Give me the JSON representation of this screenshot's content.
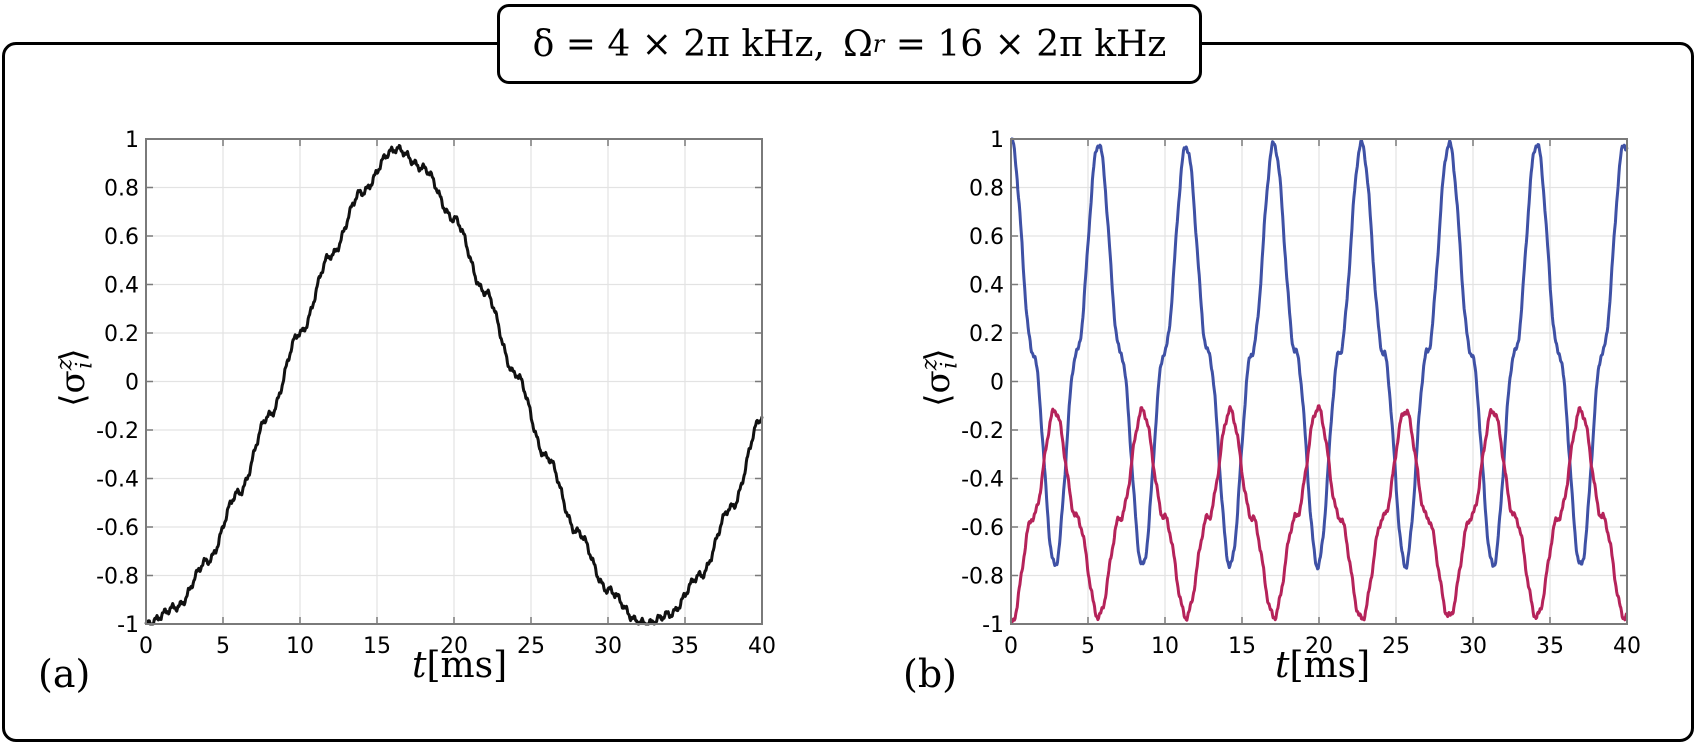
{
  "header": {
    "title": "δ = 4 × 2π kHz,  Ω_r = 16 × 2π kHz",
    "title_parts": {
      "delta_label": "δ = 4 × 2π kHz,",
      "omega_symbol": "Ω",
      "omega_sub": "r",
      "omega_rest": " = 16 × 2π kHz"
    }
  },
  "panels": [
    {
      "label": "(a)",
      "xlabel_var": "t",
      "xlabel_unit": "[ms]",
      "ylabel": "⟨σ",
      "ylabel_sup": "z",
      "ylabel_sub": "i",
      "ylabel_close": "⟩"
    },
    {
      "label": "(b)",
      "xlabel_var": "t",
      "xlabel_unit": "[ms]",
      "ylabel": "⟨σ",
      "ylabel_sup": "z",
      "ylabel_sub": "i",
      "ylabel_close": "⟩"
    }
  ],
  "colors": {
    "black": "#111111",
    "blue": "#3F51A5",
    "red": "#B5235A",
    "grid": "#e3e3e3",
    "axis": "#7a7a7a"
  },
  "chart_data": [
    {
      "type": "line",
      "title": "(a)",
      "xlabel": "t[ms]",
      "ylabel": "⟨σ_i^z⟩",
      "xlim": [
        0,
        40
      ],
      "ylim": [
        -1,
        1
      ],
      "xticks": [
        0,
        5,
        10,
        15,
        20,
        25,
        30,
        35,
        40
      ],
      "yticks": [
        1,
        0.8,
        0.6,
        0.4,
        0.2,
        0,
        -0.2,
        -0.4,
        -0.6,
        -0.8,
        -1
      ],
      "ytick_labels": [
        "1",
        "0.8",
        "0.6",
        "0.4",
        "0.2",
        "0",
        "-0.2",
        "-0.4",
        "-0.6",
        "-0.8",
        "-1"
      ],
      "grid": true,
      "series": [
        {
          "name": "σ_i^z",
          "color": "#111111",
          "x": [
            0,
            2,
            4,
            6,
            8,
            10,
            12,
            14,
            16,
            16.25,
            18,
            20,
            22,
            24,
            26,
            28,
            30,
            32,
            32.5,
            34,
            36,
            38,
            40
          ],
          "y": [
            -1.0,
            -0.93,
            -0.74,
            -0.46,
            -0.14,
            0.2,
            0.52,
            0.78,
            0.95,
            0.96,
            0.88,
            0.67,
            0.37,
            0.03,
            -0.31,
            -0.62,
            -0.86,
            -0.99,
            -1.0,
            -0.96,
            -0.8,
            -0.52,
            -0.15
          ]
        }
      ]
    },
    {
      "type": "line",
      "title": "(b)",
      "xlabel": "t[ms]",
      "ylabel": "⟨σ_i^z⟩",
      "xlim": [
        0,
        40
      ],
      "ylim": [
        -1,
        1
      ],
      "xticks": [
        0,
        5,
        10,
        15,
        20,
        25,
        30,
        35,
        40
      ],
      "yticks": [
        1,
        0.8,
        0.6,
        0.4,
        0.2,
        0,
        -0.2,
        -0.4,
        -0.6,
        -0.8,
        -1
      ],
      "ytick_labels": [
        "1",
        "0.8",
        "0.6",
        "0.4",
        "0.2",
        "0",
        "-0.2",
        "-0.4",
        "-0.6",
        "-0.8",
        "-1"
      ],
      "grid": true,
      "series": [
        {
          "name": "blue",
          "color": "#3F51A5",
          "x": [
            0,
            1.42,
            2.85,
            4.27,
            5.69,
            7.11,
            8.54,
            9.96,
            11.38,
            12.8,
            14.23,
            15.65,
            17.07,
            18.49,
            19.92,
            21.34,
            22.76,
            24.18,
            25.61,
            27.03,
            28.45,
            29.87,
            31.3,
            32.72,
            34.14,
            35.56,
            36.99,
            38.41,
            39.83,
            40
          ],
          "y": [
            1.0,
            0.12,
            -0.76,
            0.12,
            0.98,
            0.12,
            -0.76,
            0.12,
            0.97,
            0.12,
            -0.76,
            0.12,
            0.98,
            0.12,
            -0.76,
            0.12,
            0.98,
            0.12,
            -0.76,
            0.12,
            0.98,
            0.12,
            -0.76,
            0.12,
            0.98,
            0.12,
            -0.76,
            0.12,
            0.98,
            0.96
          ]
        },
        {
          "name": "red",
          "color": "#B5235A",
          "x": [
            0,
            1.42,
            2.85,
            4.27,
            5.69,
            7.11,
            8.54,
            9.96,
            11.38,
            12.8,
            14.23,
            15.65,
            17.07,
            18.49,
            19.92,
            21.34,
            22.76,
            24.18,
            25.61,
            27.03,
            28.45,
            29.87,
            31.3,
            32.72,
            34.14,
            35.56,
            36.99,
            38.41,
            39.83,
            40
          ],
          "y": [
            -1.0,
            -0.56,
            -0.12,
            -0.56,
            -0.97,
            -0.56,
            -0.12,
            -0.56,
            -0.97,
            -0.56,
            -0.12,
            -0.56,
            -0.97,
            -0.56,
            -0.11,
            -0.56,
            -0.98,
            -0.56,
            -0.12,
            -0.56,
            -0.97,
            -0.56,
            -0.12,
            -0.56,
            -0.97,
            -0.56,
            -0.12,
            -0.56,
            -0.97,
            -0.97
          ]
        }
      ]
    }
  ]
}
